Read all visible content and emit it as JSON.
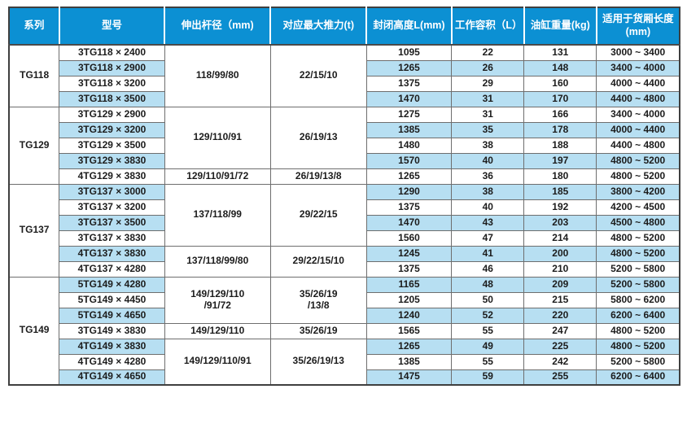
{
  "colors": {
    "header_bg": "#0c90d3",
    "header_text": "#ffffff",
    "stripe_bg": "#b7dff2",
    "border_dark": "#3f3f3f",
    "border_gray": "#6e6e6e",
    "body_text": "#1c1c1c"
  },
  "table": {
    "columns": [
      {
        "key": "series",
        "label": "系列"
      },
      {
        "key": "model",
        "label": "型号"
      },
      {
        "key": "rod",
        "label": "伸出杆径（mm)"
      },
      {
        "key": "thrust",
        "label": "对应最大推力(t)"
      },
      {
        "key": "height",
        "label": "封闭高度L(mm)"
      },
      {
        "key": "volume",
        "label": "工作容积（L）"
      },
      {
        "key": "weight",
        "label": "油缸重量(kg)"
      },
      {
        "key": "range",
        "label": "适用于货厢长度\n(mm)"
      }
    ],
    "groups": [
      {
        "series": "TG118",
        "subgroups": [
          {
            "rod": "118/99/80",
            "thrust": "22/15/10",
            "rows": [
              {
                "model": "3TG118 × 2400",
                "height": "1095",
                "volume": "22",
                "weight": "131",
                "range": "3000 ~ 3400"
              },
              {
                "model": "3TG118 × 2900",
                "height": "1265",
                "volume": "26",
                "weight": "148",
                "range": "3400 ~ 4000"
              },
              {
                "model": "3TG118 × 3200",
                "height": "1375",
                "volume": "29",
                "weight": "160",
                "range": "4000 ~ 4400"
              },
              {
                "model": "3TG118 × 3500",
                "height": "1470",
                "volume": "31",
                "weight": "170",
                "range": "4400 ~ 4800"
              }
            ]
          }
        ]
      },
      {
        "series": "TG129",
        "subgroups": [
          {
            "rod": "129/110/91",
            "thrust": "26/19/13",
            "rows": [
              {
                "model": "3TG129 × 2900",
                "height": "1275",
                "volume": "31",
                "weight": "166",
                "range": "3400 ~ 4000"
              },
              {
                "model": "3TG129 × 3200",
                "height": "1385",
                "volume": "35",
                "weight": "178",
                "range": "4000 ~ 4400"
              },
              {
                "model": "3TG129 × 3500",
                "height": "1480",
                "volume": "38",
                "weight": "188",
                "range": "4400 ~ 4800"
              },
              {
                "model": "3TG129 × 3830",
                "height": "1570",
                "volume": "40",
                "weight": "197",
                "range": "4800 ~ 5200"
              }
            ]
          },
          {
            "rod": "129/110/91/72",
            "thrust": "26/19/13/8",
            "rows": [
              {
                "model": "4TG129 × 3830",
                "height": "1265",
                "volume": "36",
                "weight": "180",
                "range": "4800 ~ 5200"
              }
            ]
          }
        ]
      },
      {
        "series": "TG137",
        "subgroups": [
          {
            "rod": "137/118/99",
            "thrust": "29/22/15",
            "rows": [
              {
                "model": "3TG137 × 3000",
                "height": "1290",
                "volume": "38",
                "weight": "185",
                "range": "3800 ~ 4200"
              },
              {
                "model": "3TG137 × 3200",
                "height": "1375",
                "volume": "40",
                "weight": "192",
                "range": "4200 ~ 4500"
              },
              {
                "model": "3TG137 × 3500",
                "height": "1470",
                "volume": "43",
                "weight": "203",
                "range": "4500 ~ 4800"
              },
              {
                "model": "3TG137 × 3830",
                "height": "1560",
                "volume": "47",
                "weight": "214",
                "range": "4800 ~ 5200"
              }
            ]
          },
          {
            "rod": "137/118/99/80",
            "thrust": "29/22/15/10",
            "rows": [
              {
                "model": "4TG137 × 3830",
                "height": "1245",
                "volume": "41",
                "weight": "200",
                "range": "4800 ~ 5200"
              },
              {
                "model": "4TG137 × 4280",
                "height": "1375",
                "volume": "46",
                "weight": "210",
                "range": "5200 ~ 5800"
              }
            ]
          }
        ]
      },
      {
        "series": "TG149",
        "subgroups": [
          {
            "rod": "149/129/110\n/91/72",
            "thrust": "35/26/19\n/13/8",
            "rows": [
              {
                "model": "5TG149 × 4280",
                "height": "1165",
                "volume": "48",
                "weight": "209",
                "range": "5200 ~ 5800"
              },
              {
                "model": "5TG149 × 4450",
                "height": "1205",
                "volume": "50",
                "weight": "215",
                "range": "5800 ~ 6200"
              },
              {
                "model": "5TG149 × 4650",
                "height": "1240",
                "volume": "52",
                "weight": "220",
                "range": "6200 ~ 6400"
              }
            ]
          },
          {
            "rod": "149/129/110",
            "thrust": "35/26/19",
            "rows": [
              {
                "model": "3TG149 × 3830",
                "height": "1565",
                "volume": "55",
                "weight": "247",
                "range": "4800 ~ 5200"
              }
            ]
          },
          {
            "rod": "149/129/110/91",
            "thrust": "35/26/19/13",
            "rows": [
              {
                "model": "4TG149 × 3830",
                "height": "1265",
                "volume": "49",
                "weight": "225",
                "range": "4800 ~ 5200"
              },
              {
                "model": "4TG149 × 4280",
                "height": "1385",
                "volume": "55",
                "weight": "242",
                "range": "5200 ~ 5800"
              },
              {
                "model": "4TG149 × 4650",
                "height": "1475",
                "volume": "59",
                "weight": "255",
                "range": "6200 ~ 6400"
              }
            ]
          }
        ]
      }
    ]
  }
}
